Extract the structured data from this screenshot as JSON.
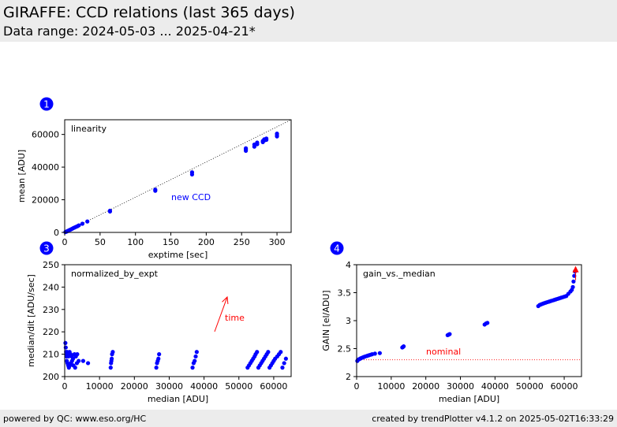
{
  "header": {
    "title": "GIRAFFE: CCD relations (last 365 days)",
    "subtitle": "Data range: 2024-05-03 ... 2025-04-21*"
  },
  "footer": {
    "left": "powered by QC: www.eso.org/HC",
    "right": "created by trendPlotter v4.1.2 on 2025-05-02T16:33:29"
  },
  "colors": {
    "points": "#0000ff",
    "annotation": "#ff0000",
    "badge": "#0000ff"
  },
  "chart_data": [
    {
      "badge": "1",
      "type": "scatter",
      "title": "linearity",
      "xlabel": "exptime [sec]",
      "ylabel": "mean [ADU]",
      "xlim": [
        0,
        320
      ],
      "ylim": [
        0,
        69000
      ],
      "xticks": [
        0,
        50,
        100,
        150,
        200,
        250,
        300
      ],
      "yticks": [
        0,
        20000,
        40000,
        60000
      ],
      "annotation": {
        "text": "new CCD",
        "color": "#0000ff"
      },
      "reference_line": {
        "style": "dotted",
        "x": [
          0,
          320
        ],
        "y": [
          0,
          69000
        ]
      },
      "series": [
        {
          "x": [
            1,
            2,
            3,
            4,
            5,
            6,
            8,
            10,
            12,
            14,
            16,
            18,
            20,
            25,
            32,
            64,
            64,
            128,
            128,
            180,
            180,
            256,
            256,
            256,
            268,
            268,
            272,
            272,
            280,
            280,
            282,
            282,
            285,
            285,
            300,
            300,
            300
          ],
          "y": [
            200,
            400,
            600,
            800,
            1000,
            1300,
            1700,
            2100,
            2600,
            3000,
            3400,
            3800,
            4300,
            5300,
            6700,
            12800,
            13300,
            25500,
            26200,
            35500,
            36800,
            50000,
            50800,
            51500,
            52500,
            53800,
            54000,
            55000,
            55300,
            56000,
            56300,
            57000,
            56700,
            57500,
            58800,
            59600,
            60500
          ]
        }
      ]
    },
    {
      "badge": "3",
      "type": "scatter",
      "title": "normalized_by_expt",
      "xlabel": "median [ADU]",
      "ylabel": "median/dit [ADU/sec]",
      "xlim": [
        0,
        65000
      ],
      "ylim": [
        200,
        250
      ],
      "xticks": [
        0,
        10000,
        20000,
        30000,
        40000,
        50000,
        60000
      ],
      "yticks": [
        200,
        210,
        220,
        230,
        240,
        250
      ],
      "annotation": {
        "text": "time",
        "color": "#ff0000"
      },
      "series": [
        {
          "x": [
            200,
            300,
            400,
            500,
            600,
            800,
            1000,
            1200,
            1500,
            1800,
            2100,
            2500,
            3000,
            3500,
            4000,
            5300,
            6700,
            500,
            700,
            900,
            1100,
            1400,
            1700,
            2000,
            2400,
            2800,
            3200,
            3600,
            13200,
            13300,
            13400,
            13500,
            13600,
            13800,
            26300,
            26500,
            26700,
            26900,
            27100,
            36700,
            37000,
            37300,
            37600,
            37900,
            52500,
            52900,
            53300,
            53700,
            54100,
            54500,
            54800,
            55200,
            55600,
            56000,
            56400,
            56800,
            57200,
            57600,
            58000,
            58400,
            58800,
            59200,
            59600,
            60000,
            60400,
            61000,
            61500,
            62000,
            62500,
            63000,
            63500
          ],
          "y": [
            215,
            213,
            211,
            209,
            207,
            206,
            205,
            204,
            205,
            206,
            207,
            205,
            204,
            206,
            207,
            207,
            206,
            210,
            211,
            210,
            209,
            211,
            210,
            209,
            208,
            210,
            209,
            210,
            204,
            206,
            207,
            208,
            210,
            211,
            204,
            206,
            207,
            208,
            210,
            204,
            206,
            207,
            209,
            211,
            204,
            205,
            206,
            207,
            208,
            209,
            210,
            211,
            204,
            205,
            206,
            207,
            208,
            209,
            210,
            211,
            204,
            205,
            206,
            207,
            208,
            209,
            210,
            211,
            204,
            206,
            208
          ]
        }
      ]
    },
    {
      "badge": "4",
      "type": "scatter",
      "title": "gain_vs._median",
      "xlabel": "median [ADU]",
      "ylabel": "GAIN [el/ADU]",
      "xlim": [
        0,
        65000
      ],
      "ylim": [
        2.0,
        4.0
      ],
      "xticks": [
        0,
        10000,
        20000,
        30000,
        40000,
        50000,
        60000
      ],
      "yticks": [
        2.0,
        2.5,
        3.0,
        3.5,
        4.0
      ],
      "annotation": {
        "text": "nominal",
        "color": "#ff0000"
      },
      "reference_line": {
        "style": "dotted",
        "y_value": 2.3
      },
      "series": [
        {
          "x": [
            200,
            400,
            700,
            1000,
            1300,
            1700,
            2100,
            2500,
            3000,
            3500,
            4000,
            4500,
            5300,
            6700,
            13200,
            13400,
            13600,
            26300,
            26600,
            26900,
            37000,
            37400,
            37800,
            52500,
            52900,
            53300,
            53700,
            54100,
            54600,
            55100,
            55600,
            56100,
            56600,
            57100,
            57600,
            58100,
            58600,
            59100,
            59600,
            60100,
            60600,
            61200,
            61800,
            62200,
            62500,
            62700,
            62900,
            63100
          ],
          "y": [
            2.28,
            2.3,
            2.31,
            2.32,
            2.33,
            2.34,
            2.35,
            2.36,
            2.37,
            2.38,
            2.39,
            2.4,
            2.41,
            2.42,
            2.52,
            2.53,
            2.54,
            2.74,
            2.75,
            2.76,
            2.93,
            2.95,
            2.96,
            3.26,
            3.28,
            3.29,
            3.3,
            3.31,
            3.32,
            3.33,
            3.34,
            3.35,
            3.36,
            3.37,
            3.38,
            3.39,
            3.4,
            3.41,
            3.42,
            3.43,
            3.44,
            3.48,
            3.52,
            3.55,
            3.6,
            3.7,
            3.8,
            3.88
          ]
        }
      ],
      "highlight": {
        "x": 63300,
        "y": 3.92,
        "color": "#ff0000"
      }
    }
  ]
}
